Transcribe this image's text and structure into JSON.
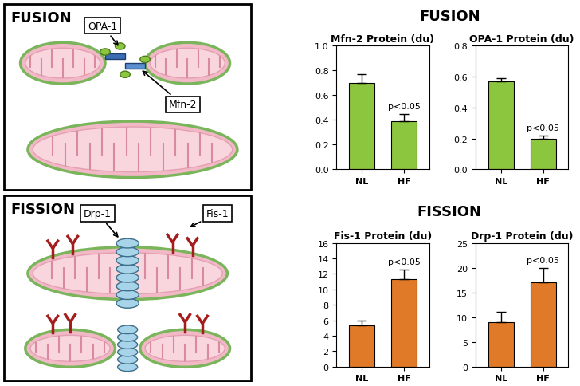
{
  "diagram": {
    "fusion": {
      "title": "FUSION",
      "labels": [
        "OPA-1",
        "Mfn-2"
      ]
    },
    "fission": {
      "title": "FISSION",
      "labels": [
        "Drp-1",
        "Fis-1"
      ]
    }
  },
  "headers": [
    "FUSION",
    "FISSION"
  ],
  "chart_data": [
    {
      "type": "bar",
      "title": "Mfn-2 Protein (du)",
      "categories": [
        "NL",
        "HF"
      ],
      "values": [
        0.7,
        0.39
      ],
      "errors": [
        0.07,
        0.06
      ],
      "color": "#8cc63f",
      "ylim": [
        0,
        1.0
      ],
      "yticks": [
        {
          "value": 0,
          "label": "0.0"
        },
        {
          "value": 0.2,
          "label": "0.2"
        },
        {
          "value": 0.4,
          "label": "0.4"
        },
        {
          "value": 0.6,
          "label": "0.6"
        },
        {
          "value": 0.8,
          "label": "0.8"
        },
        {
          "value": 1.0,
          "label": "1.0"
        }
      ],
      "annotations": [
        {
          "category": "HF",
          "text": "p<0.05"
        }
      ]
    },
    {
      "type": "bar",
      "title": "OPA-1 Protein (du)",
      "categories": [
        "NL",
        "HF"
      ],
      "values": [
        0.57,
        0.2
      ],
      "errors": [
        0.02,
        0.02
      ],
      "color": "#8cc63f",
      "ylim": [
        0,
        0.8
      ],
      "yticks": [
        {
          "value": 0,
          "label": "0.0"
        },
        {
          "value": 0.2,
          "label": "0.2"
        },
        {
          "value": 0.4,
          "label": "0.4"
        },
        {
          "value": 0.6,
          "label": "0.6"
        },
        {
          "value": 0.8,
          "label": "0.8"
        }
      ],
      "annotations": [
        {
          "category": "HF",
          "text": "p<0.05"
        }
      ]
    },
    {
      "type": "bar",
      "title": "Fis-1 Protein (du)",
      "categories": [
        "NL",
        "HF"
      ],
      "values": [
        5.3,
        11.3
      ],
      "errors": [
        0.7,
        1.3
      ],
      "color": "#e07a28",
      "ylim": [
        0,
        16
      ],
      "yticks": [
        0,
        2,
        4,
        6,
        8,
        10,
        12,
        14,
        16
      ],
      "annotations": [
        {
          "category": "HF",
          "text": "p<0.05"
        }
      ]
    },
    {
      "type": "bar",
      "title": "Drp-1 Protein (du)",
      "categories": [
        "NL",
        "HF"
      ],
      "values": [
        9,
        17
      ],
      "errors": [
        2,
        3
      ],
      "color": "#e07a28",
      "ylim": [
        0,
        25
      ],
      "yticks": [
        0,
        5,
        10,
        15,
        20,
        25
      ],
      "annotations": [
        {
          "category": "HF",
          "text": "p<0.05"
        }
      ]
    }
  ]
}
